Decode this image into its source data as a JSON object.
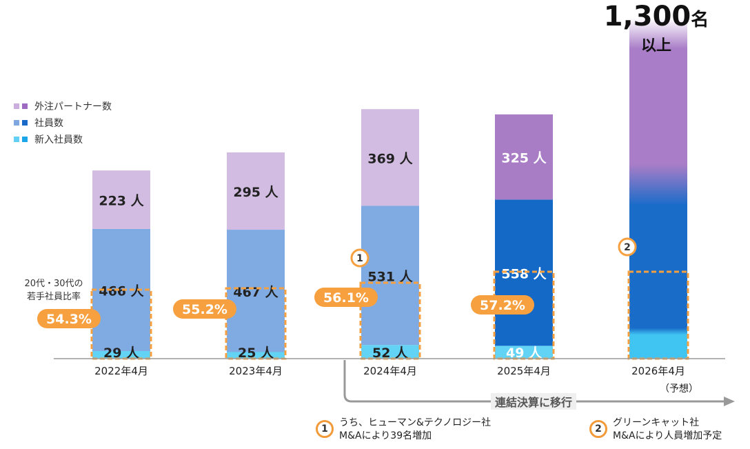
{
  "legend": [
    {
      "label": "外注パートナー数",
      "colors": [
        "#c9aede",
        "#9d6bbf"
      ]
    },
    {
      "label": "社員数",
      "colors": [
        "#7ea7e0",
        "#1a68c7"
      ]
    },
    {
      "label": "新入社員数",
      "colors": [
        "#63d1f5",
        "#1aa6e8"
      ]
    }
  ],
  "ratio_label_line1": "20代・30代の",
  "ratio_label_line2": "若手社員比率",
  "total_label": {
    "number": "1,300",
    "unit": "名",
    "sub": "以上"
  },
  "transition_label": "連結決算に移行",
  "notes": [
    {
      "num": "1",
      "line1": "うち、ヒューマン&テクノロジー社",
      "line2": "M&Aにより39名増加"
    },
    {
      "num": "2",
      "line1": "グリーンキャット社",
      "line2": "M&Aにより人員増加予定"
    }
  ],
  "colors": {
    "partner_light": "#d2bce1",
    "partner_dark": "#a87dc5",
    "employee_light": "#80abe2",
    "employee_dark": "#1469c7",
    "newhire_light": "#62d3f5",
    "newhire_dark": "#3ac4f2",
    "accent_orange": "#f7a040",
    "axis": "#999999"
  },
  "chart_data": {
    "type": "bar",
    "stacked": true,
    "categories": [
      "2022年4月",
      "2023年4月",
      "2024年4月",
      "2025年4月",
      "2026年4月"
    ],
    "category_notes": [
      "",
      "",
      "",
      "",
      "（予想）"
    ],
    "unit": "人",
    "series": [
      {
        "name": "新入社員数",
        "values": [
          29,
          25,
          52,
          49,
          null
        ]
      },
      {
        "name": "社員数",
        "values": [
          466,
          467,
          531,
          558,
          null
        ]
      },
      {
        "name": "外注パートナー数",
        "values": [
          223,
          295,
          369,
          325,
          null
        ]
      }
    ],
    "forecast_total": {
      "category": "2026年4月",
      "value": 1300
    },
    "young_ratio": [
      "54.3%",
      "55.2%",
      "56.1%",
      "57.2%",
      null
    ],
    "markers": [
      {
        "category": "2024年4月",
        "label": "1"
      },
      {
        "category": "2026年4月",
        "label": "2"
      }
    ]
  }
}
